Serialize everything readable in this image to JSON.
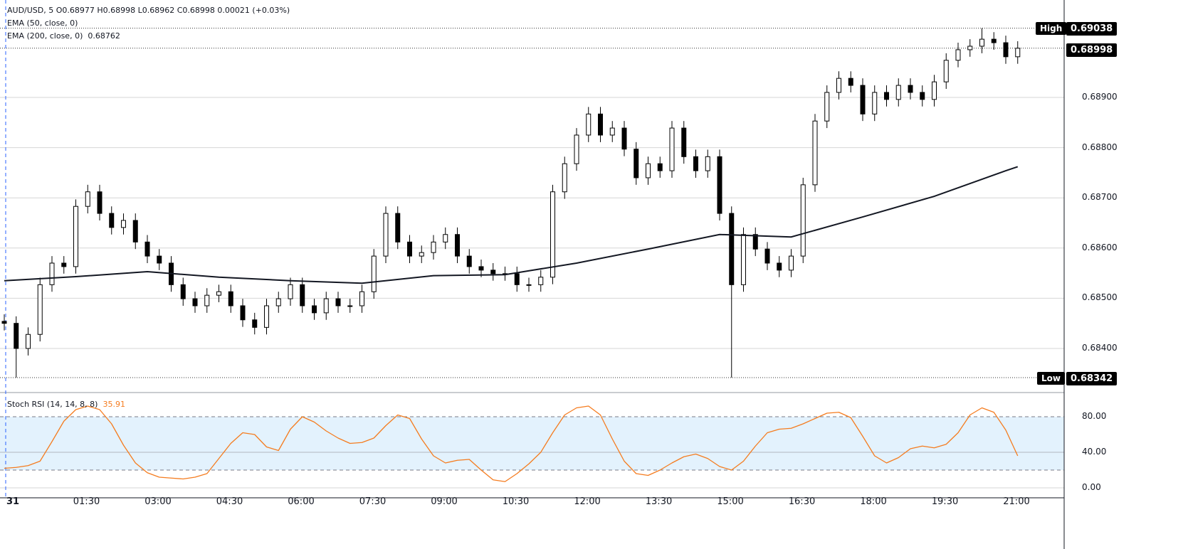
{
  "header": {
    "symbol_line": "AUD/USD, 5  O0.68977  H0.68998  L0.68962  C0.68998  0.00021 (+0.03%)",
    "ema50_label": "EMA (50, close, 0)",
    "ema200_label": "EMA (200, close, 0)",
    "ema200_value": "0.68762"
  },
  "price_axis": {
    "ticks": [
      "0.68900",
      "0.68800",
      "0.68700",
      "0.68600",
      "0.68500",
      "0.68400"
    ],
    "tick_values": [
      0.689,
      0.688,
      0.687,
      0.686,
      0.685,
      0.684
    ],
    "high_label": "High",
    "high_value": "0.69038",
    "current_value": "0.68998",
    "low_label": "Low",
    "low_value": "0.68342"
  },
  "stoch": {
    "label": "Stoch RSI (14, 14, 8, 8)",
    "value": "35.91",
    "ticks": [
      "80.00",
      "40.00",
      "0.00"
    ],
    "tick_values": [
      80,
      40,
      0
    ],
    "band": [
      20,
      80
    ],
    "line_color": "#f57c1f",
    "band_color": "#e3f2fd"
  },
  "time_axis": [
    "31",
    "01:30",
    "03:00",
    "04:30",
    "06:00",
    "07:30",
    "09:00",
    "10:30",
    "12:00",
    "13:30",
    "15:00",
    "16:30",
    "18:00",
    "19:30",
    "21:00"
  ],
  "chart_data": {
    "type": "candlestick",
    "interval_note": "approximate closes sampled every 15 min",
    "close": [
      0.6845,
      0.684,
      0.68428,
      0.68527,
      0.6857,
      0.68563,
      0.68683,
      0.68712,
      0.68669,
      0.68641,
      0.68655,
      0.68612,
      0.68584,
      0.6857,
      0.68527,
      0.68499,
      0.68485,
      0.68506,
      0.68513,
      0.68485,
      0.68457,
      0.68442,
      0.68485,
      0.68499,
      0.68527,
      0.68485,
      0.68471,
      0.68499,
      0.68485,
      0.68485,
      0.68513,
      0.68584,
      0.68669,
      0.68612,
      0.68584,
      0.68591,
      0.68612,
      0.68627,
      0.68584,
      0.68563,
      0.68556,
      0.68549,
      0.68549,
      0.68527,
      0.68527,
      0.68542,
      0.68712,
      0.68768,
      0.68825,
      0.68867,
      0.68825,
      0.68839,
      0.68797,
      0.6874,
      0.68768,
      0.68754,
      0.68839,
      0.68782,
      0.68754,
      0.68782,
      0.68669,
      0.68527,
      0.68627,
      0.68598,
      0.6857,
      0.68556,
      0.68584,
      0.68726,
      0.68853,
      0.6891,
      0.68938,
      0.68924,
      0.68867,
      0.6891,
      0.68896,
      0.68924,
      0.6891,
      0.68896,
      0.68931,
      0.68974,
      0.68995,
      0.69002,
      0.69016,
      0.69009,
      0.68981,
      0.68998
    ],
    "ema200_every_6": [
      0.68535,
      0.68543,
      0.68553,
      0.68542,
      0.68535,
      0.6853,
      0.68545,
      0.68547,
      0.6857,
      0.68598,
      0.68627,
      0.68622,
      0.68662,
      0.68703,
      0.68754,
      0.68762
    ],
    "stoch_rsi": [
      22,
      23,
      25,
      30,
      52,
      75,
      88,
      92,
      88,
      72,
      48,
      28,
      17,
      12,
      11,
      10,
      12,
      16,
      33,
      50,
      62,
      60,
      46,
      42,
      66,
      80,
      74,
      64,
      56,
      50,
      51,
      56,
      70,
      82,
      78,
      55,
      36,
      28,
      31,
      32,
      20,
      9,
      7,
      16,
      27,
      40,
      62,
      82,
      90,
      92,
      82,
      55,
      30,
      16,
      14,
      20,
      28,
      35,
      38,
      33,
      24,
      20,
      30,
      47,
      62,
      66,
      67,
      72,
      78,
      84,
      85,
      79,
      58,
      36,
      28,
      34,
      44,
      47,
      45,
      49,
      62,
      82,
      90,
      85,
      65,
      36
    ],
    "ylim": [
      0.6832,
      0.6906
    ],
    "high": 0.69038,
    "low": 0.68342
  }
}
